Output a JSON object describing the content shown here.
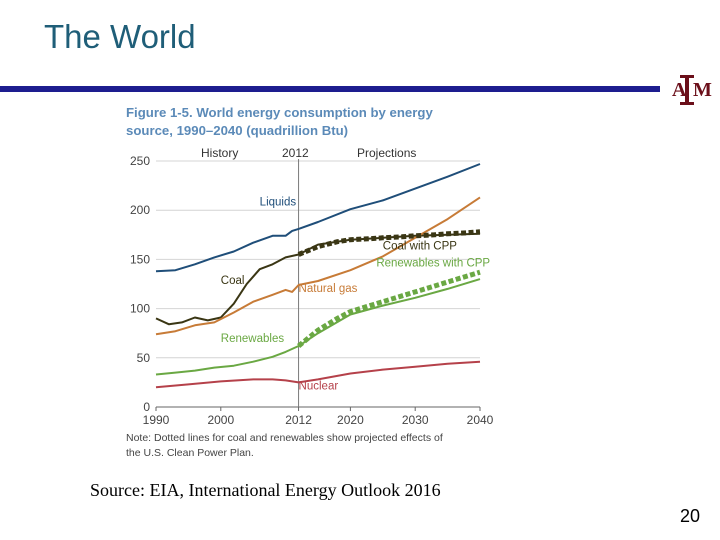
{
  "slide": {
    "title": "The World",
    "source": "Source: EIA, International Energy Outlook 2016",
    "page_number": "20",
    "logo_text": "ATM",
    "colors": {
      "title": "#1f5e78",
      "rule": "#1d1d8f",
      "logo": "#6b0f1a"
    }
  },
  "chart_data": {
    "type": "line",
    "title_line1": "Figure 1-5. World energy consumption by energy",
    "title_line2": "source, 1990–2040 (quadrillion Btu)",
    "xlabel": "",
    "ylabel": "",
    "xlim": [
      1990,
      2040
    ],
    "ylim": [
      0,
      250
    ],
    "x_ticks": [
      1990,
      2000,
      2012,
      2020,
      2030,
      2040
    ],
    "y_ticks": [
      0,
      50,
      100,
      150,
      200,
      250
    ],
    "divider_year": 2012,
    "period_labels": {
      "history": "History",
      "divider": "2012",
      "projections": "Projections"
    },
    "note_line1": "Note: Dotted lines for coal and renewables show projected effects of",
    "note_line2": "the U.S. Clean Power Plan.",
    "series": [
      {
        "name": "Liquids",
        "color": "#1f4e79",
        "style": "solid",
        "label_at": [
          2006,
          205
        ],
        "x": [
          1990,
          1993,
          1996,
          1999,
          2002,
          2005,
          2008,
          2010,
          2011,
          2012,
          2015,
          2020,
          2025,
          2030,
          2035,
          2040
        ],
        "y": [
          138,
          139,
          145,
          152,
          158,
          167,
          174,
          174,
          179,
          181,
          188,
          201,
          210,
          222,
          234,
          247
        ]
      },
      {
        "name": "Coal",
        "color": "#3a3614",
        "style": "solid",
        "label_at": [
          2000,
          125
        ],
        "x": [
          1990,
          1992,
          1994,
          1996,
          1998,
          2000,
          2002,
          2004,
          2006,
          2008,
          2010,
          2012,
          2015,
          2020,
          2025,
          2030,
          2035,
          2040
        ],
        "y": [
          90,
          84,
          86,
          91,
          88,
          91,
          105,
          125,
          140,
          145,
          152,
          155,
          165,
          170,
          172,
          174,
          175,
          176
        ]
      },
      {
        "name": "Natural gas",
        "color": "#c77b37",
        "style": "solid",
        "label_at": [
          2012,
          117
        ],
        "x": [
          1990,
          1993,
          1996,
          1999,
          2002,
          2005,
          2008,
          2010,
          2011,
          2012,
          2015,
          2020,
          2025,
          2030,
          2035,
          2040
        ],
        "y": [
          74,
          77,
          83,
          86,
          96,
          107,
          114,
          119,
          117,
          124,
          128,
          139,
          153,
          172,
          191,
          213
        ]
      },
      {
        "name": "Renewables",
        "color": "#6aa843",
        "style": "solid",
        "label_at": [
          2000,
          66
        ],
        "x": [
          1990,
          1993,
          1996,
          1999,
          2002,
          2005,
          2008,
          2010,
          2012,
          2015,
          2020,
          2025,
          2030,
          2035,
          2040
        ],
        "y": [
          33,
          35,
          37,
          40,
          42,
          46,
          51,
          56,
          62,
          75,
          94,
          103,
          111,
          120,
          130
        ]
      },
      {
        "name": "Nuclear",
        "color": "#b5414a",
        "style": "solid",
        "label_at": [
          2012,
          18
        ],
        "x": [
          1990,
          1995,
          2000,
          2005,
          2008,
          2010,
          2011,
          2012,
          2015,
          2020,
          2025,
          2030,
          2035,
          2040
        ],
        "y": [
          20,
          23,
          26,
          28,
          28,
          27,
          26,
          25,
          28,
          34,
          38,
          41,
          44,
          46
        ]
      },
      {
        "name": "Coal with CPP",
        "color": "#3a3614",
        "style": "dotted",
        "label_at": [
          2025,
          160
        ],
        "x": [
          2012,
          2015,
          2018,
          2020,
          2023,
          2025,
          2028,
          2030,
          2033,
          2035,
          2038,
          2040
        ],
        "y": [
          155,
          163,
          168,
          170,
          171,
          172,
          173,
          174,
          175,
          176,
          177,
          178
        ]
      },
      {
        "name": "Renewables with CPP",
        "color": "#6aa843",
        "style": "dotted",
        "label_at": [
          2024,
          143
        ],
        "x": [
          2012,
          2015,
          2018,
          2020,
          2023,
          2025,
          2028,
          2030,
          2033,
          2035,
          2038,
          2040
        ],
        "y": [
          62,
          78,
          90,
          97,
          103,
          107,
          113,
          117,
          123,
          127,
          133,
          137
        ]
      }
    ]
  }
}
